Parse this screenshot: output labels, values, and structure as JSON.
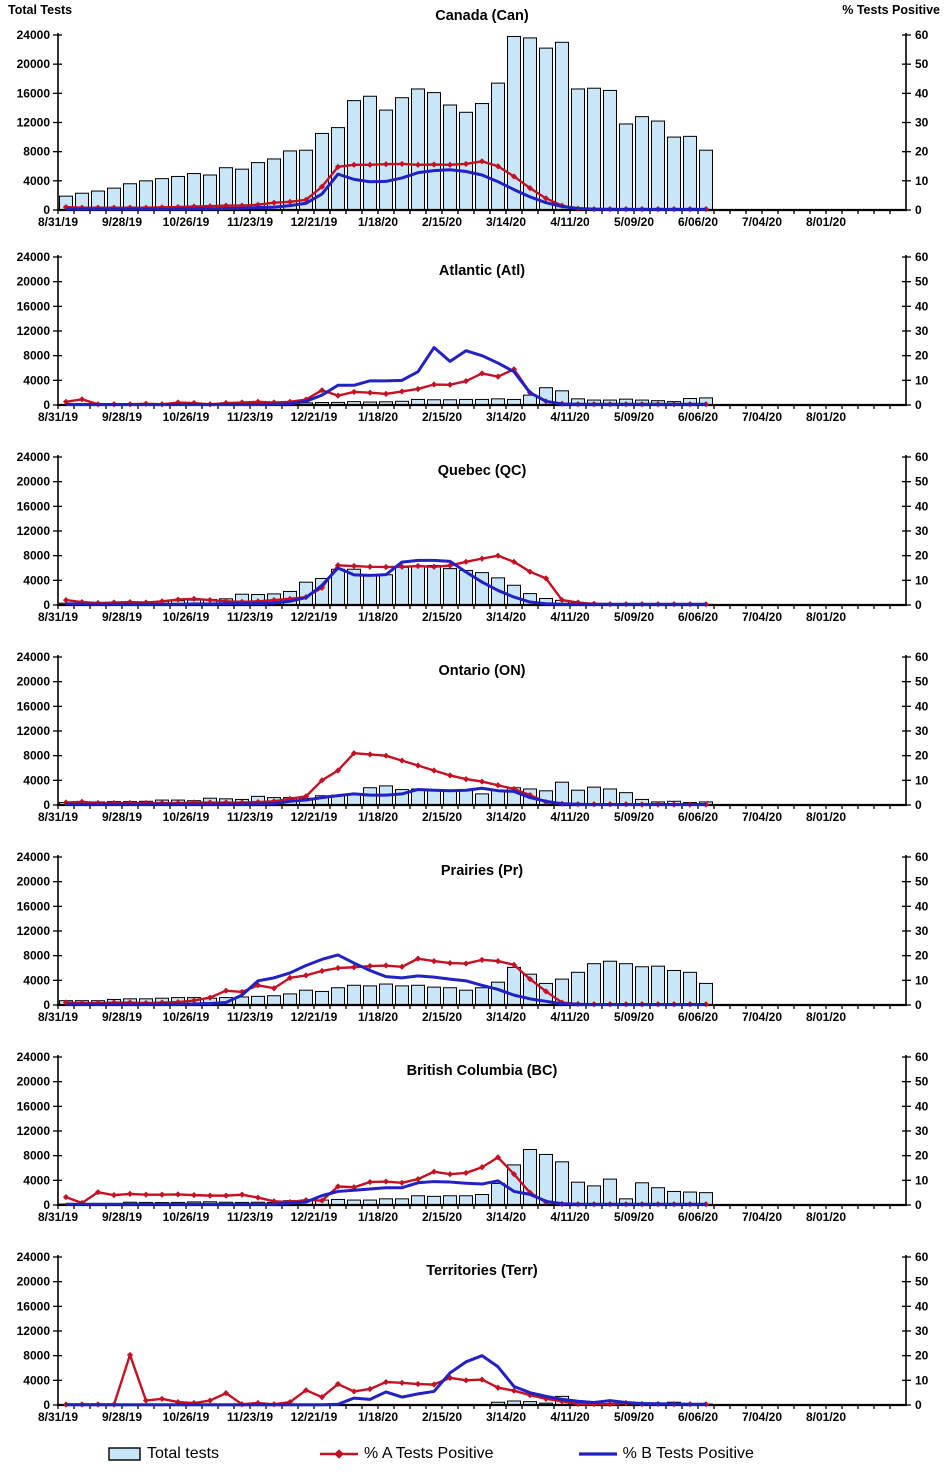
{
  "header": {
    "left_axis_title": "Total Tests",
    "right_axis_title": "% Tests Positive"
  },
  "legend": {
    "items": [
      {
        "label": "Total tests",
        "marker": "bar-swatch"
      },
      {
        "label": "% A Tests Positive",
        "marker": "line-diamond"
      },
      {
        "label": "% B Tests Positive",
        "marker": "line"
      }
    ]
  },
  "colors": {
    "bar_fill": "#C9E6F8",
    "bar_stroke": "#000000",
    "line_a": "#C41224",
    "line_b": "#2121C4",
    "axis": "#000000"
  },
  "chart_data": {
    "type": "multi-panel bar+line combo",
    "ylabel_left": "Total Tests",
    "ylabel_right": "% Tests Positive",
    "ylim_left": [
      0,
      24000
    ],
    "ylim_right": [
      0,
      60
    ],
    "left_tick_step": 4000,
    "right_tick_step": 10,
    "grid": false,
    "legend_position": "bottom",
    "weeks_on_axis": 53,
    "x_tick_labels": [
      "8/31/19",
      "9/28/19",
      "10/26/19",
      "11/23/19",
      "12/21/19",
      "1/18/20",
      "2/15/20",
      "3/14/20",
      "4/11/20",
      "5/09/20",
      "6/06/20",
      "7/04/20",
      "8/01/20"
    ],
    "x_label_every_weeks": 4,
    "categories": [
      "8/31/19",
      "9/07/19",
      "9/14/19",
      "9/21/19",
      "9/28/19",
      "10/05/19",
      "10/12/19",
      "10/19/19",
      "10/26/19",
      "11/02/19",
      "11/09/19",
      "11/16/19",
      "11/23/19",
      "11/30/19",
      "12/07/19",
      "12/14/19",
      "12/21/19",
      "12/28/19",
      "1/04/20",
      "1/11/20",
      "1/18/20",
      "1/25/20",
      "2/01/20",
      "2/08/20",
      "2/15/20",
      "2/22/20",
      "2/29/20",
      "3/07/20",
      "3/14/20",
      "3/21/20",
      "3/28/20",
      "4/04/20",
      "4/11/20",
      "4/18/20",
      "4/25/20",
      "5/02/20",
      "5/09/20",
      "5/16/20",
      "5/23/20",
      "5/30/20",
      "6/06/20"
    ],
    "series_names": [
      "Total tests",
      "% A Tests Positive",
      "% B Tests Positive"
    ],
    "panels": [
      {
        "title": "Canada (Can)",
        "total_tests": [
          1900,
          2300,
          2600,
          3000,
          3600,
          4000,
          4300,
          4600,
          5000,
          4800,
          5800,
          5600,
          6500,
          7000,
          8100,
          8200,
          10500,
          11300,
          15000,
          15600,
          13700,
          15400,
          16600,
          16100,
          14400,
          13400,
          14600,
          17400,
          23800,
          23600,
          22200,
          23000,
          16600,
          16700,
          16400,
          11800,
          12800,
          12200,
          10000,
          10100,
          8200
        ],
        "pct_a": [
          1.0,
          0.8,
          0.8,
          0.8,
          0.8,
          0.8,
          0.9,
          1.0,
          1.2,
          1.3,
          1.5,
          1.5,
          1.8,
          2.5,
          2.8,
          3.5,
          8.0,
          14.8,
          15.5,
          15.5,
          15.7,
          15.8,
          15.5,
          15.6,
          15.5,
          15.8,
          16.7,
          15.0,
          11.5,
          7.5,
          4.0,
          1.5,
          0.5,
          0.3,
          0.3,
          0.3,
          0.3,
          0.3,
          0.3,
          0.3,
          0.3
        ],
        "pct_b": [
          0.3,
          0.3,
          0.3,
          0.3,
          0.3,
          0.3,
          0.3,
          0.3,
          0.4,
          0.4,
          0.5,
          0.6,
          0.8,
          1.0,
          1.5,
          2.3,
          5.5,
          12.3,
          10.5,
          9.7,
          9.8,
          11.0,
          12.8,
          13.5,
          13.8,
          13.2,
          12.0,
          9.7,
          7.0,
          4.5,
          2.5,
          1.2,
          0.5,
          0.3,
          0.2,
          0.2,
          0.2,
          0.2,
          0.2,
          0.2,
          0.2
        ]
      },
      {
        "title": "Atlantic (Atl)",
        "total_tests": [
          80,
          100,
          60,
          60,
          80,
          80,
          80,
          100,
          120,
          100,
          150,
          150,
          200,
          200,
          250,
          350,
          400,
          420,
          550,
          480,
          520,
          600,
          900,
          850,
          850,
          900,
          900,
          1000,
          900,
          1600,
          2800,
          2300,
          1000,
          800,
          800,
          950,
          800,
          700,
          550,
          1050,
          1150
        ],
        "pct_a": [
          1.3,
          2.3,
          0.3,
          0.3,
          0.3,
          0.5,
          0.3,
          1.0,
          0.8,
          0.3,
          0.8,
          1.0,
          1.3,
          1.0,
          1.3,
          2.2,
          6.0,
          3.8,
          5.3,
          5.0,
          4.5,
          5.5,
          6.5,
          8.3,
          8.2,
          9.7,
          12.8,
          11.5,
          14.5,
          5.0,
          1.5,
          0.5,
          0.3,
          0.3,
          0.3,
          0.3,
          0.3,
          0.3,
          0.3,
          0.3,
          0.3
        ],
        "pct_b": [
          0.2,
          0.2,
          0.2,
          0.2,
          0.2,
          0.2,
          0.2,
          0.2,
          0.2,
          0.2,
          0.2,
          0.2,
          0.2,
          0.3,
          0.5,
          1.5,
          4.0,
          8.0,
          8.0,
          9.8,
          9.8,
          10.0,
          13.5,
          23.3,
          17.7,
          22.0,
          20.0,
          17.0,
          13.5,
          5.0,
          1.5,
          0.4,
          0.3,
          0.3,
          0.3,
          0.3,
          0.3,
          0.3,
          0.3,
          0.3,
          0.3
        ]
      },
      {
        "title": "Quebec (QC)",
        "total_tests": [
          300,
          250,
          250,
          350,
          500,
          500,
          550,
          700,
          800,
          900,
          1000,
          1750,
          1700,
          1800,
          2200,
          3700,
          4300,
          5800,
          5800,
          4900,
          4900,
          6100,
          6250,
          6400,
          5900,
          5600,
          5250,
          4400,
          3200,
          1850,
          1050,
          750,
          300,
          200,
          150,
          150,
          100,
          100,
          100,
          100,
          100
        ],
        "pct_a": [
          2.0,
          1.2,
          0.8,
          1.0,
          1.2,
          1.0,
          1.5,
          2.2,
          2.5,
          2.0,
          1.5,
          1.3,
          1.5,
          2.0,
          2.5,
          3.2,
          7.0,
          16.1,
          15.8,
          15.5,
          15.4,
          15.5,
          15.8,
          15.5,
          16.0,
          17.5,
          18.8,
          20.0,
          17.5,
          13.5,
          10.8,
          2.0,
          1.0,
          0.5,
          0.3,
          0.3,
          0.3,
          0.3,
          0.3,
          0.3,
          0.3
        ],
        "pct_b": [
          0.5,
          0.4,
          0.3,
          0.3,
          0.3,
          0.3,
          0.3,
          0.3,
          0.4,
          0.4,
          0.5,
          0.5,
          0.6,
          0.8,
          1.5,
          3.0,
          8.0,
          15.0,
          12.2,
          12.0,
          12.3,
          17.4,
          18.1,
          18.1,
          17.7,
          13.4,
          9.3,
          5.9,
          3.2,
          1.2,
          0.5,
          0.3,
          0.3,
          0.3,
          0.3,
          0.3,
          0.3,
          0.3,
          0.3,
          0.3,
          0.3
        ]
      },
      {
        "title": "Ontario (ON)",
        "total_tests": [
          400,
          350,
          500,
          550,
          550,
          600,
          800,
          800,
          700,
          1100,
          1000,
          900,
          1400,
          1200,
          1200,
          1100,
          1500,
          1600,
          1800,
          2800,
          3100,
          2500,
          2600,
          2500,
          2300,
          2400,
          1800,
          2400,
          2800,
          2600,
          2300,
          3700,
          2400,
          2900,
          2600,
          2000,
          900,
          500,
          600,
          400,
          500
        ],
        "pct_a": [
          1.0,
          1.3,
          0.8,
          0.8,
          0.8,
          0.8,
          0.8,
          0.8,
          1.0,
          1.0,
          1.0,
          1.0,
          1.2,
          1.5,
          2.5,
          3.5,
          10.0,
          14.0,
          21.0,
          20.5,
          20.0,
          18.0,
          16.0,
          14.0,
          12.0,
          10.5,
          9.5,
          8.0,
          6.5,
          4.0,
          1.2,
          0.5,
          0.3,
          0.3,
          0.3,
          0.3,
          0.2,
          0.2,
          0.2,
          0.2,
          0.2
        ],
        "pct_b": [
          0.3,
          0.3,
          0.3,
          0.3,
          0.3,
          0.3,
          0.3,
          0.3,
          0.3,
          0.3,
          0.3,
          0.3,
          0.4,
          0.5,
          1.5,
          2.0,
          3.0,
          3.8,
          4.5,
          4.0,
          4.0,
          4.5,
          6.3,
          6.0,
          5.8,
          6.0,
          6.8,
          5.8,
          5.5,
          3.0,
          1.5,
          0.5,
          0.3,
          0.2,
          0.2,
          0.2,
          0.2,
          0.2,
          0.2,
          0.2,
          0.2
        ]
      },
      {
        "title": "Prairies (Pr)",
        "total_tests": [
          700,
          700,
          700,
          900,
          1000,
          1000,
          1100,
          1200,
          1200,
          1100,
          1200,
          1300,
          1400,
          1500,
          1800,
          2400,
          2200,
          2800,
          3200,
          3100,
          3400,
          3100,
          3200,
          2900,
          2800,
          2400,
          2800,
          3700,
          6100,
          5000,
          3500,
          4200,
          5300,
          6700,
          7100,
          6700,
          6200,
          6300,
          5600,
          5300,
          3500
        ],
        "pct_a": [
          1.0,
          0.8,
          0.8,
          1.0,
          1.0,
          0.8,
          1.0,
          1.2,
          1.8,
          3.0,
          5.8,
          5.3,
          8.0,
          6.8,
          11.0,
          12.0,
          13.8,
          15.0,
          15.3,
          15.8,
          16.0,
          15.5,
          18.8,
          17.8,
          17.0,
          16.8,
          18.3,
          17.8,
          16.3,
          10.5,
          5.5,
          1.0,
          0.4,
          0.3,
          0.3,
          0.3,
          0.3,
          0.3,
          0.3,
          0.3,
          0.3
        ],
        "pct_b": [
          0.3,
          0.3,
          0.3,
          0.3,
          0.3,
          0.3,
          0.3,
          0.3,
          0.4,
          0.6,
          1.0,
          4.0,
          9.8,
          11.0,
          13.0,
          16.0,
          18.5,
          20.3,
          17.0,
          14.0,
          11.5,
          11.0,
          11.8,
          11.3,
          10.5,
          9.8,
          8.0,
          6.3,
          4.0,
          2.5,
          1.5,
          0.5,
          0.3,
          0.2,
          0.2,
          0.2,
          0.2,
          0.2,
          0.2,
          0.2,
          0.2
        ]
      },
      {
        "title": "British Columbia (BC)",
        "total_tests": [
          150,
          150,
          150,
          200,
          450,
          420,
          400,
          420,
          500,
          520,
          450,
          420,
          450,
          420,
          700,
          700,
          800,
          900,
          800,
          800,
          1000,
          1000,
          1500,
          1400,
          1500,
          1500,
          1700,
          3500,
          6500,
          9000,
          8200,
          7000,
          3700,
          3100,
          4200,
          1000,
          3600,
          2800,
          2200,
          2100,
          2000
        ],
        "pct_a": [
          3.2,
          0.8,
          5.2,
          4.0,
          4.5,
          4.2,
          4.2,
          4.3,
          4.0,
          3.8,
          3.8,
          4.2,
          3.0,
          1.5,
          1.2,
          2.0,
          1.8,
          7.5,
          7.2,
          9.3,
          9.5,
          9.0,
          10.5,
          13.5,
          12.5,
          13.0,
          15.3,
          19.3,
          12.5,
          5.0,
          1.2,
          0.4,
          0.3,
          0.3,
          0.3,
          0.3,
          0.3,
          0.3,
          0.3,
          0.3,
          0.3
        ],
        "pct_b": [
          0.3,
          0.3,
          0.3,
          0.3,
          0.3,
          0.3,
          0.3,
          0.3,
          0.3,
          0.3,
          0.3,
          0.3,
          0.3,
          0.3,
          0.8,
          1.2,
          3.8,
          5.5,
          6.0,
          6.5,
          7.0,
          7.0,
          9.0,
          9.5,
          9.3,
          8.8,
          8.5,
          9.8,
          5.5,
          4.3,
          1.5,
          0.5,
          0.3,
          0.3,
          0.3,
          0.3,
          0.3,
          0.3,
          0.3,
          0.3,
          0.3
        ]
      },
      {
        "title": "Territories (Terr)",
        "total_tests": [
          0,
          0,
          0,
          0,
          0,
          0,
          0,
          0,
          0,
          0,
          0,
          0,
          0,
          0,
          0,
          0,
          0,
          0,
          0,
          0,
          0,
          0,
          0,
          0,
          0,
          0,
          0,
          450,
          650,
          550,
          300,
          1400,
          250,
          150,
          250,
          350,
          300,
          250,
          450,
          250,
          150
        ],
        "pct_a": [
          0.2,
          0.2,
          0.2,
          0.2,
          20.3,
          1.8,
          2.5,
          1.2,
          0.8,
          1.8,
          4.8,
          0.3,
          0.8,
          0.3,
          1.2,
          6.0,
          3.2,
          8.5,
          5.5,
          6.5,
          9.3,
          9.0,
          8.5,
          8.3,
          11.0,
          10.0,
          10.3,
          7.0,
          5.8,
          4.0,
          2.5,
          1.5,
          0.4,
          0.4,
          0.4,
          0.8,
          0.4,
          0.4,
          0.3,
          0.3,
          0.3
        ],
        "pct_b": [
          0.1,
          0.1,
          0.1,
          0.1,
          0.1,
          0.1,
          0.1,
          0.1,
          0.1,
          0.1,
          0.1,
          0.1,
          0.1,
          0.1,
          0.1,
          0.1,
          0.1,
          0.3,
          2.8,
          2.3,
          5.3,
          3.2,
          4.5,
          5.5,
          13.0,
          17.5,
          20.0,
          15.5,
          7.5,
          5.0,
          3.5,
          2.3,
          1.5,
          1.0,
          1.8,
          1.0,
          0.6,
          0.5,
          0.4,
          0.3,
          0.3
        ]
      }
    ]
  }
}
